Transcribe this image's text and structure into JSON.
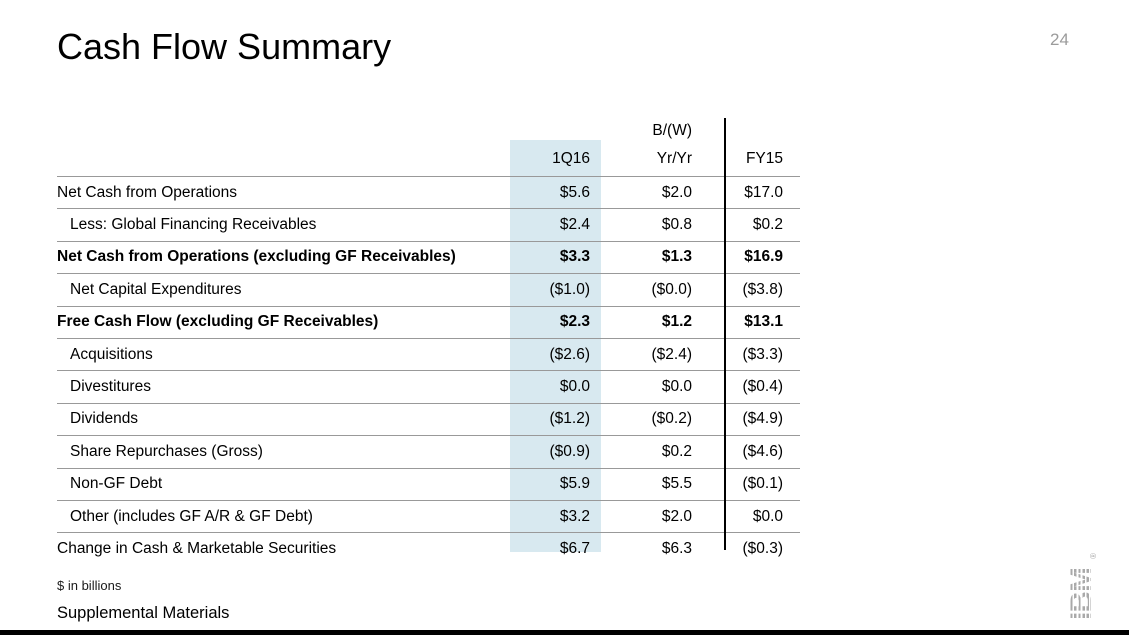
{
  "slide": {
    "title": "Cash Flow Summary",
    "page_number": "24",
    "footnote": "$ in billions",
    "footer_label": "Supplemental Materials",
    "logo": {
      "text": "IBM",
      "registered": "®"
    }
  },
  "colors": {
    "highlight_column": "#d8e9f0",
    "row_line": "#999999",
    "divider": "#000000",
    "page_number": "#9b9b9b",
    "logo": "#a9a9a9"
  },
  "table": {
    "header": {
      "bw_label": "B/(W)",
      "col_q": "1Q16",
      "col_yoy": "Yr/Yr",
      "col_fy": "FY15"
    },
    "rows": [
      {
        "label": "Net Cash from Operations",
        "q": "$5.6",
        "yoy": "$2.0",
        "fy": "$17.0"
      },
      {
        "label": "Less: Global Financing Receivables",
        "q": "$2.4",
        "yoy": "$0.8",
        "fy": "$0.2"
      },
      {
        "label": "Net Cash from Operations (excluding GF Receivables)",
        "q": "$3.3",
        "yoy": "$1.3",
        "fy": "$16.9"
      },
      {
        "label": "Net Capital Expenditures",
        "q": "($1.0)",
        "yoy": "($0.0)",
        "fy": "($3.8)"
      },
      {
        "label": "Free Cash Flow (excluding GF Receivables)",
        "q": "$2.3",
        "yoy": "$1.2",
        "fy": "$13.1"
      },
      {
        "label": "Acquisitions",
        "q": "($2.6)",
        "yoy": "($2.4)",
        "fy": "($3.3)"
      },
      {
        "label": "Divestitures",
        "q": "$0.0",
        "yoy": "$0.0",
        "fy": "($0.4)"
      },
      {
        "label": "Dividends",
        "q": "($1.2)",
        "yoy": "($0.2)",
        "fy": "($4.9)"
      },
      {
        "label": "Share Repurchases (Gross)",
        "q": "($0.9)",
        "yoy": "$0.2",
        "fy": "($4.6)"
      },
      {
        "label": "Non-GF Debt",
        "q": "$5.9",
        "yoy": "$5.5",
        "fy": "($0.1)"
      },
      {
        "label": "Other (includes GF A/R & GF Debt)",
        "q": "$3.2",
        "yoy": "$2.0",
        "fy": "$0.0"
      },
      {
        "label": "Change in Cash & Marketable Securities",
        "q": "$6.7",
        "yoy": "$6.3",
        "fy": "($0.3)"
      }
    ]
  }
}
